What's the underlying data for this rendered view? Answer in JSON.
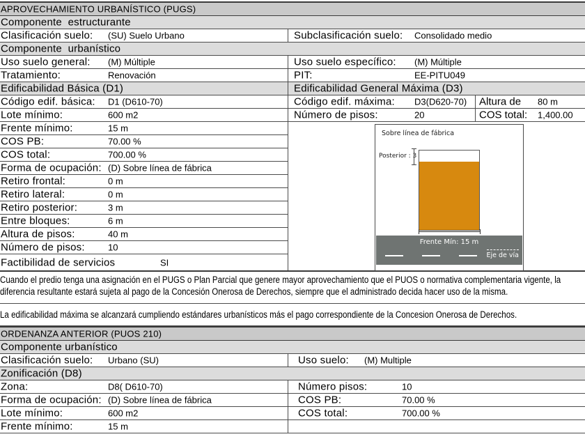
{
  "pugs": {
    "header": "APROVECHAMIENTO URBANÍSTICO (PUGS)",
    "componente_estructurante": "Componente  estructurante",
    "componente_urbanistico": "Componente  urbanístico",
    "clasificacion": {
      "label": "Clasificación suelo:",
      "value": "(SU) Suelo Urbano"
    },
    "subclasificacion": {
      "label": "Subclasificación suelo:",
      "value": "Consolidado medio"
    },
    "uso_general": {
      "label": "Uso suelo general:",
      "value": "(M) Múltiple"
    },
    "uso_especifico": {
      "label": "Uso suelo específico:",
      "value": "(M) Múltiple"
    },
    "tratamiento": {
      "label": "Tratamiento:",
      "value": "Renovación"
    },
    "pit": {
      "label": "PIT:",
      "value": "EE-PITU049"
    },
    "edificabilidad_basica": {
      "header": "Edificabilidad Básica (D1)",
      "rows": [
        {
          "label": "Código edif. básica:",
          "value": "D1 (D610-70)"
        },
        {
          "label": "Lote mínimo:",
          "value": "600 m2"
        },
        {
          "label": "Frente mínimo:",
          "value": "15 m"
        },
        {
          "label": "COS PB:",
          "value": "70.00 %"
        },
        {
          "label": "COS total:",
          "value": "700.00 %"
        },
        {
          "label": "Forma de ocupación:",
          "value": "(D) Sobre línea de fábrica"
        },
        {
          "label": "Retiro frontal:",
          "value": "0 m"
        },
        {
          "label": "Retiro lateral:",
          "value": "0 m"
        },
        {
          "label": "Retiro posterior:",
          "value": "3 m"
        },
        {
          "label": "Entre bloques:",
          "value": "6 m"
        },
        {
          "label": "Altura de pisos:",
          "value": "40 m"
        },
        {
          "label": "Número de pisos:",
          "value": "10"
        },
        {
          "label": "Factibilidad de servicios",
          "value": "SI"
        }
      ]
    },
    "edificabilidad_maxima": {
      "header": "Edificabilidad General Máxima (D3)",
      "row1": {
        "label1": "Código edif. máxima:",
        "value1": "D3(D620-70)",
        "label2": "Altura de",
        "value2": "80 m"
      },
      "row2": {
        "label1": "Número de pisos:",
        "value1": "20",
        "label2": "COS total:",
        "value2": "1,400.00"
      }
    },
    "diagram": {
      "title": "Sobre línea de fábrica",
      "posterior_label": "Posterior : 3 m",
      "frente_label": "Frente Mín: 15 m",
      "eje_label": "Eje de vía"
    },
    "nota_concesion": "Cuando el predio tenga una asignación en el PUGS o Plan Parcial que genere mayor aprovechamiento que el PUOS o normativa complementaria vigente, la diferencia resultante estará sujeta al pago de la Concesión Onerosa de Derechos, siempre que el administrado decida hacer uso de la misma.",
    "nota_edificabilidad": "La edificabilidad máxima se alcanzará cumpliendo estándares urbanísticos más el pago correspondiente de la Concesion Onerosa de Derechos."
  },
  "puos": {
    "header": "ORDENANZA ANTERIOR (PUOS 210)",
    "componente_urbanistico": "Componente urbanístico",
    "zonificacion": "Zonificación (D8)",
    "clasificacion": {
      "label": "Clasificación suelo:",
      "value": "Urbano (SU)"
    },
    "uso_suelo": {
      "label": "Uso suelo:",
      "value": "(M) Multiple"
    },
    "zona": {
      "label": "Zona:",
      "value": "D8( D610-70)"
    },
    "numero_pisos": {
      "label": "Número pisos:",
      "value": "10"
    },
    "forma_ocupacion": {
      "label": "Forma de ocupación:",
      "value": "(D) Sobre línea de fábrica"
    },
    "cos_pb": {
      "label": "COS PB:",
      "value": "70.00 %"
    },
    "lote_minimo": {
      "label": "Lote mínimo:",
      "value": "600 m2"
    },
    "cos_total": {
      "label": "COS total:",
      "value": "700.00 %"
    },
    "frente_minimo": {
      "label": "Frente mínimo:",
      "value": "15 m"
    }
  },
  "colors": {
    "building_orange": "#D7890F",
    "road_gray": "#6F7472",
    "header_gray": "#C9C9C9",
    "subheader_gray": "#DCDCDC"
  }
}
